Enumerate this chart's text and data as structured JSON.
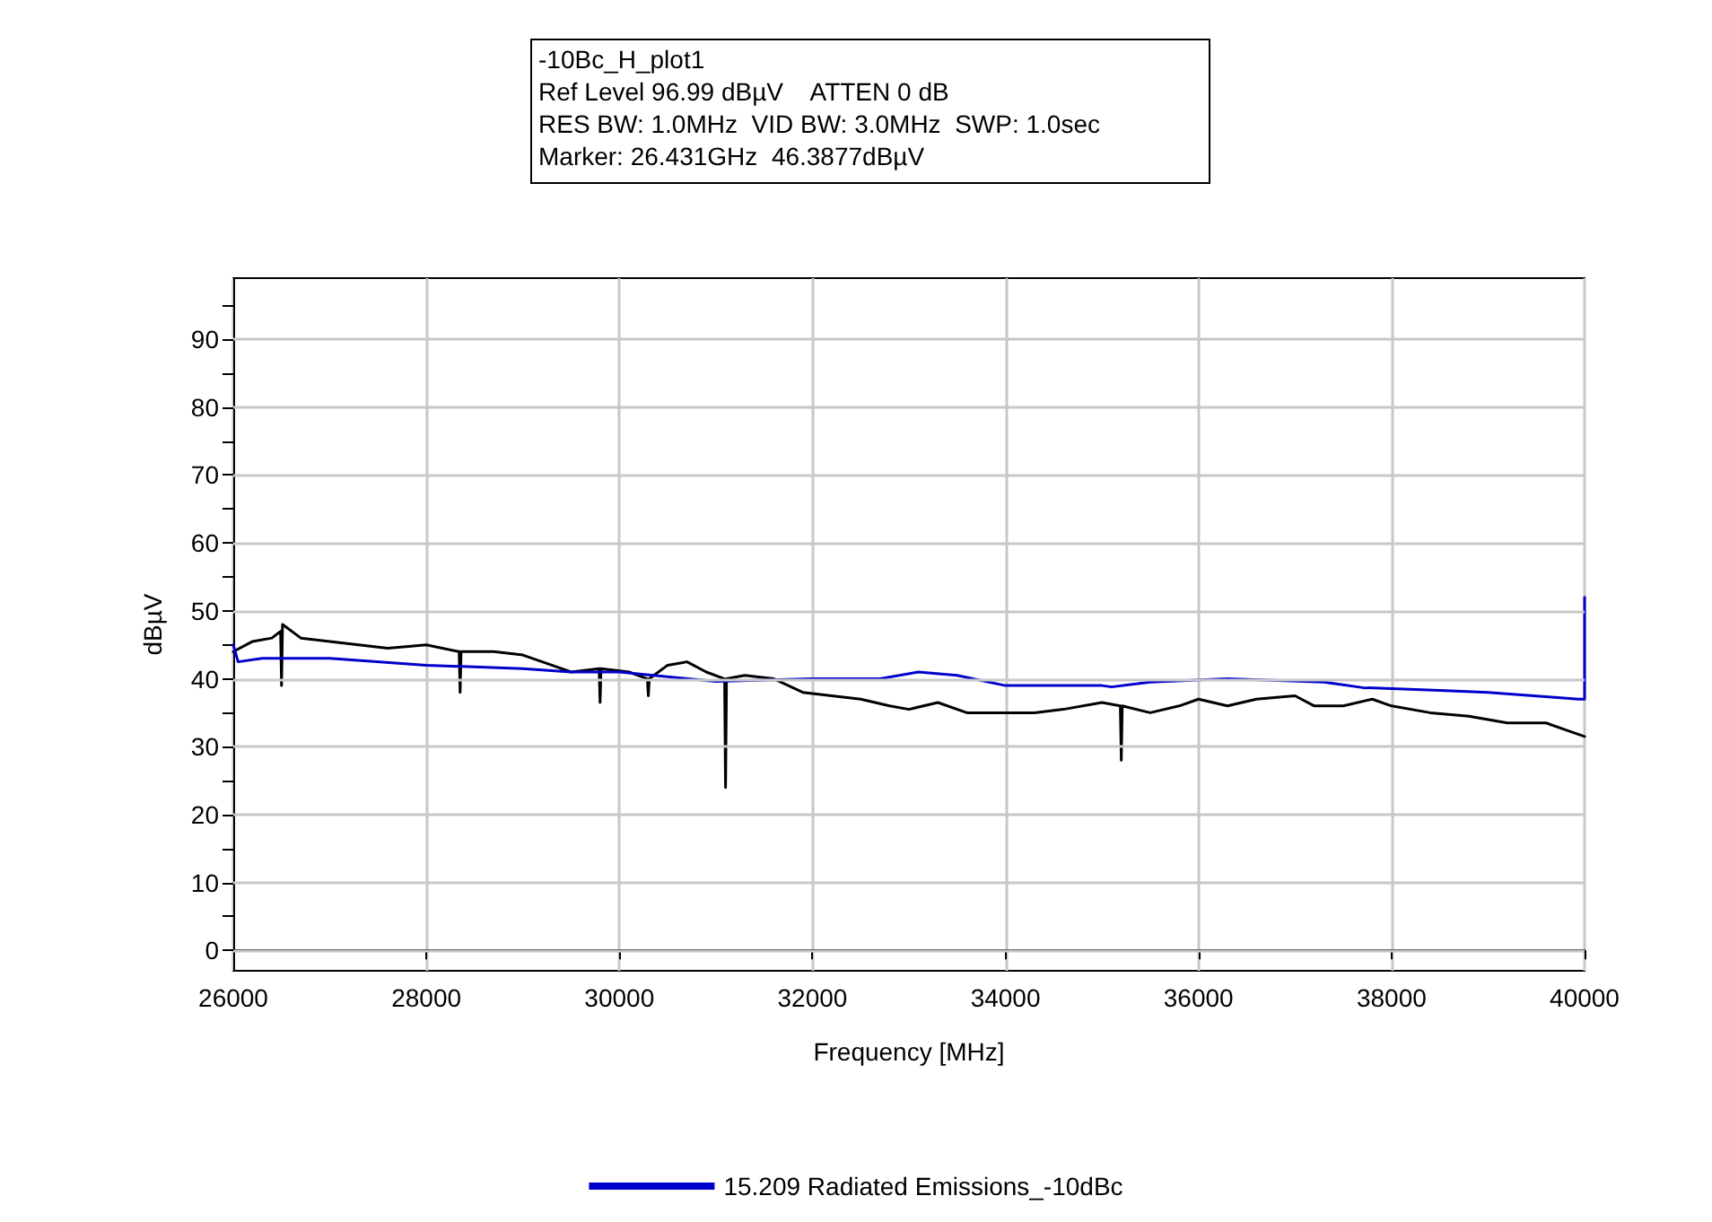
{
  "chart_data": {
    "type": "line",
    "title": "-10Bc_H_plot1",
    "annotations": [
      "Ref Level 96.99 dBµV    ATTEN 0 dB",
      "RES BW: 1.0MHz  VID BW: 3.0MHz  SWP: 1.0sec",
      "Marker: 26.431GHz  46.3877dBµV"
    ],
    "xlabel": "Frequency [MHz]",
    "ylabel": "dBµV",
    "xlim": [
      26000,
      40000
    ],
    "xticks": [
      26000,
      28000,
      30000,
      32000,
      34000,
      36000,
      38000,
      40000
    ],
    "ylim": [
      -3,
      99
    ],
    "yticks": [
      0,
      {
        "value": 5,
        "label": null
      },
      10,
      {
        "value": 15,
        "label": null
      },
      20,
      {
        "value": 25,
        "label": null
      },
      30,
      {
        "value": 35,
        "label": null
      },
      40,
      {
        "value": 45,
        "label": null
      },
      50,
      {
        "value": 55,
        "label": null
      },
      60,
      {
        "value": 65,
        "label": null
      },
      70,
      {
        "value": 75,
        "label": null
      },
      80,
      {
        "value": 85,
        "label": null
      },
      90,
      {
        "value": 95,
        "label": null
      }
    ],
    "grid": true,
    "legend": "bottom",
    "marker": "none",
    "line_style": "solid",
    "series": [
      {
        "color": "#000000",
        "x": [
          26000,
          26200,
          26400,
          26490,
          26500,
          26510,
          26700,
          27000,
          27300,
          27600,
          28000,
          28340,
          28350,
          28360,
          28700,
          29000,
          29300,
          29500,
          29790,
          29800,
          29810,
          30100,
          30290,
          30300,
          30310,
          30500,
          30700,
          30900,
          31090,
          31100,
          31110,
          31300,
          31600,
          31900,
          32200,
          32500,
          32800,
          33000,
          33300,
          33600,
          34000,
          34300,
          34600,
          35000,
          35190,
          35200,
          35210,
          35500,
          35800,
          36000,
          36300,
          36600,
          37000,
          37200,
          37500,
          37800,
          38000,
          38400,
          38800,
          39200,
          39600,
          39800,
          40000
        ],
        "values": [
          44,
          45.5,
          46,
          47,
          39,
          48,
          46,
          45.5,
          45,
          44.5,
          45,
          44,
          38,
          44,
          44,
          43.5,
          42,
          41,
          41.5,
          36.5,
          41.5,
          41,
          40,
          37.5,
          40,
          42,
          42.5,
          41,
          40,
          24,
          40,
          40.5,
          40,
          38,
          37.5,
          37,
          36,
          35.5,
          36.5,
          35,
          35,
          35,
          35.5,
          36.5,
          36,
          28,
          36,
          35,
          36,
          37,
          36,
          37,
          37.5,
          36,
          36,
          37,
          36,
          35,
          34.5,
          33.5,
          33.5,
          32.5,
          31.5
        ]
      },
      {
        "name": "15.209 Radiated Emissions_-10dBc",
        "color": "#0000cc",
        "x": [
          26000,
          26050,
          26300,
          27000,
          28000,
          29000,
          29500,
          30000,
          31000,
          32000,
          32700,
          33100,
          33500,
          34000,
          35000,
          35100,
          35500,
          36300,
          37300,
          37700,
          38500,
          39000,
          39940,
          40000,
          40000
        ],
        "values": [
          45,
          42.5,
          43,
          43,
          42,
          41.5,
          41,
          41,
          39.6,
          40,
          40,
          41,
          40.5,
          39,
          39,
          38.8,
          39.5,
          40,
          39.5,
          38.7,
          38.3,
          38,
          37,
          37,
          52
        ]
      }
    ]
  }
}
